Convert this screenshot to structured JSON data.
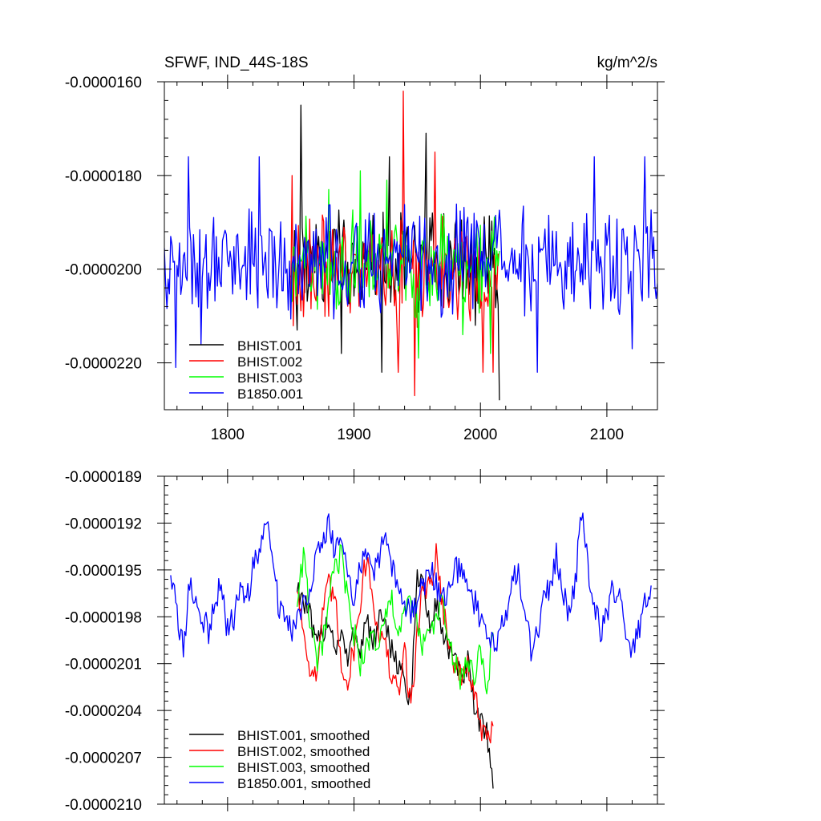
{
  "figure": {
    "title_left": "SFWF, IND_44S-18S",
    "title_right": "kg/m^2/s"
  },
  "chart_data": [
    {
      "type": "line",
      "title": "SFWF, IND_44S-18S",
      "units_label": "kg/m^2/s",
      "xlim": [
        1750,
        2140
      ],
      "ylim": [
        -2.3e-05,
        -1.6e-05
      ],
      "x_ticks": [
        1800,
        1900,
        2000,
        2100
      ],
      "x_tick_labels": [
        "1800",
        "1900",
        "2000",
        "2100"
      ],
      "y_ticks": [
        -2.2e-05,
        -2e-05,
        -1.8e-05,
        -1.6e-05
      ],
      "y_tick_labels": [
        "-0.0000220",
        "-0.0000200",
        "-0.0000180",
        "-0.0000160"
      ],
      "grid": false,
      "legend_placement": "bottom-left",
      "series": [
        {
          "name": "BHIST.001",
          "color": "#000000",
          "x_start": 1850,
          "x_end": 2015,
          "mean": -1.98e-05,
          "amp": 1e-06,
          "spikes": [
            [
              1855,
              -2.13e-05
            ],
            [
              1858,
              -1.65e-05
            ],
            [
              1890,
              -2.18e-05
            ],
            [
              1922,
              -2.22e-05
            ],
            [
              1928,
              -1.76e-05
            ],
            [
              1957,
              -1.71e-05
            ],
            [
              1996,
              -2.12e-05
            ],
            [
              2015,
              -2.28e-05
            ]
          ]
        },
        {
          "name": "BHIST.002",
          "color": "#ff0000",
          "x_start": 1850,
          "x_end": 2015,
          "mean": -2e-05,
          "amp": 1.1e-06,
          "spikes": [
            [
              1851,
              -1.8e-05
            ],
            [
              1939,
              -1.62e-05
            ],
            [
              1935,
              -2.22e-05
            ],
            [
              1948,
              -2.27e-05
            ],
            [
              1964,
              -1.75e-05
            ],
            [
              2002,
              -2.22e-05
            ],
            [
              2010,
              -2.22e-05
            ]
          ]
        },
        {
          "name": "BHIST.003",
          "color": "#00ff00",
          "x_start": 1850,
          "x_end": 2015,
          "mean": -1.99e-05,
          "amp": 1e-06,
          "spikes": [
            [
              1880,
              -1.83e-05
            ],
            [
              1905,
              -1.79e-05
            ],
            [
              1926,
              -1.81e-05
            ],
            [
              1951,
              -2.19e-05
            ],
            [
              1986,
              -2.14e-05
            ],
            [
              2008,
              -2.18e-05
            ]
          ]
        },
        {
          "name": "B1850.001",
          "color": "#0000ff",
          "x_start": 1750,
          "x_end": 2140,
          "mean": -1.98e-05,
          "amp": 1.1e-06,
          "spikes": [
            [
              1759,
              -2.21e-05
            ],
            [
              1769,
              -1.76e-05
            ],
            [
              1779,
              -2.16e-05
            ],
            [
              1825,
              -1.76e-05
            ],
            [
              2045,
              -2.22e-05
            ],
            [
              2090,
              -1.76e-05
            ],
            [
              2120,
              -2.17e-05
            ],
            [
              2130,
              -1.76e-05
            ]
          ]
        }
      ]
    },
    {
      "type": "line",
      "xlim": [
        1750,
        2140
      ],
      "ylim": [
        -2.1e-05,
        -1.89e-05
      ],
      "x_ticks": [
        1800,
        1900,
        2000,
        2100
      ],
      "y_ticks": [
        -2.1e-05,
        -2.07e-05,
        -2.04e-05,
        -2.01e-05,
        -1.98e-05,
        -1.95e-05,
        -1.92e-05,
        -1.89e-05
      ],
      "y_tick_labels": [
        "-0.0000210",
        "-0.0000207",
        "-0.0000204",
        "-0.0000201",
        "-0.0000198",
        "-0.0000195",
        "-0.0000192",
        "-0.0000189"
      ],
      "grid": false,
      "legend_placement": "bottom-left",
      "series": [
        {
          "name": "BHIST.001, smoothed",
          "color": "#000000",
          "x": [
            1855,
            1860,
            1865,
            1870,
            1875,
            1880,
            1885,
            1890,
            1895,
            1900,
            1905,
            1910,
            1915,
            1920,
            1925,
            1930,
            1935,
            1940,
            1945,
            1950,
            1955,
            1960,
            1965,
            1970,
            1975,
            1980,
            1985,
            1990,
            1995,
            2000,
            2005,
            2010
          ],
          "y": [
            -1.96e-05,
            -1.97e-05,
            -1.98e-05,
            -2e-05,
            -1.99e-05,
            -1.98e-05,
            -2e-05,
            -1.99e-05,
            -2.01e-05,
            -1.99e-05,
            -2e-05,
            -1.98e-05,
            -2e-05,
            -1.98e-05,
            -1.99e-05,
            -2e-05,
            -2.01e-05,
            -2.02e-05,
            -2.04e-05,
            -1.95e-05,
            -1.96e-05,
            -1.99e-05,
            -1.97e-05,
            -1.99e-05,
            -2e-05,
            -2.01e-05,
            -2.02e-05,
            -2.01e-05,
            -2.04e-05,
            -2.05e-05,
            -2.05e-05,
            -2.09e-05
          ]
        },
        {
          "name": "BHIST.002, smoothed",
          "color": "#ff0000",
          "x": [
            1855,
            1860,
            1865,
            1870,
            1875,
            1880,
            1885,
            1890,
            1895,
            1900,
            1905,
            1910,
            1915,
            1920,
            1925,
            1930,
            1935,
            1940,
            1945,
            1950,
            1955,
            1960,
            1965,
            1970,
            1975,
            1980,
            1985,
            1990,
            1995,
            2000,
            2005,
            2010
          ],
          "y": [
            -1.96e-05,
            -1.99e-05,
            -2.01e-05,
            -2.02e-05,
            -1.98e-05,
            -1.96e-05,
            -1.97e-05,
            -2.01e-05,
            -2.02e-05,
            -2e-05,
            -1.97e-05,
            -1.94e-05,
            -1.97e-05,
            -1.99e-05,
            -2e-05,
            -2.02e-05,
            -2.03e-05,
            -2e-05,
            -2.04e-05,
            -1.99e-05,
            -1.96e-05,
            -1.96e-05,
            -1.94e-05,
            -1.97e-05,
            -2e-05,
            -2.01e-05,
            -2.02e-05,
            -2.01e-05,
            -2.03e-05,
            -2.05e-05,
            -2.06e-05,
            -2.05e-05
          ]
        },
        {
          "name": "BHIST.003, smoothed",
          "color": "#00ff00",
          "x": [
            1855,
            1860,
            1865,
            1870,
            1875,
            1880,
            1885,
            1890,
            1895,
            1900,
            1905,
            1910,
            1915,
            1920,
            1925,
            1930,
            1935,
            1940,
            1945,
            1950,
            1955,
            1960,
            1965,
            1970,
            1975,
            1980,
            1985,
            1990,
            1995,
            2000,
            2005,
            2010
          ],
          "y": [
            -1.97e-05,
            -1.94e-05,
            -1.98e-05,
            -2.01e-05,
            -2e-05,
            -1.97e-05,
            -1.95e-05,
            -1.94e-05,
            -1.97e-05,
            -1.99e-05,
            -2.01e-05,
            -2e-05,
            -1.99e-05,
            -2e-05,
            -1.98e-05,
            -1.97e-05,
            -1.99e-05,
            -1.98e-05,
            -1.97e-05,
            -1.98e-05,
            -2e-05,
            -1.99e-05,
            -1.98e-05,
            -1.97e-05,
            -2e-05,
            -2.01e-05,
            -2.02e-05,
            -2.01e-05,
            -2.02e-05,
            -2e-05,
            -2.03e-05,
            -1.99e-05
          ]
        },
        {
          "name": "B1850.001, smoothed",
          "color": "#0000ff",
          "x": [
            1755,
            1760,
            1765,
            1770,
            1775,
            1780,
            1785,
            1790,
            1795,
            1800,
            1805,
            1810,
            1815,
            1820,
            1825,
            1830,
            1835,
            1840,
            1845,
            1850,
            1855,
            1860,
            1865,
            1870,
            1875,
            1880,
            1885,
            1890,
            1895,
            1900,
            1905,
            1910,
            1915,
            1920,
            1925,
            1930,
            1935,
            1940,
            1945,
            1950,
            1955,
            1960,
            1965,
            1970,
            1975,
            1980,
            1985,
            1990,
            1995,
            2000,
            2005,
            2010,
            2015,
            2020,
            2025,
            2030,
            2035,
            2040,
            2045,
            2050,
            2055,
            2060,
            2065,
            2070,
            2075,
            2080,
            2085,
            2090,
            2095,
            2100,
            2105,
            2110,
            2115,
            2120,
            2125,
            2130,
            2135
          ],
          "y": [
            -1.95e-05,
            -1.98e-05,
            -2e-05,
            -1.96e-05,
            -1.97e-05,
            -1.98e-05,
            -1.99e-05,
            -1.97e-05,
            -1.96e-05,
            -1.99e-05,
            -1.98e-05,
            -1.96e-05,
            -1.97e-05,
            -1.95e-05,
            -1.94e-05,
            -1.92e-05,
            -1.93e-05,
            -1.97e-05,
            -1.98e-05,
            -1.99e-05,
            -1.98e-05,
            -1.97e-05,
            -1.96e-05,
            -1.94e-05,
            -1.93e-05,
            -1.92e-05,
            -1.94e-05,
            -1.93e-05,
            -1.95e-05,
            -1.97e-05,
            -1.95e-05,
            -1.94e-05,
            -1.95e-05,
            -1.94e-05,
            -1.93e-05,
            -1.95e-05,
            -1.96e-05,
            -1.97e-05,
            -1.98e-05,
            -1.97e-05,
            -1.96e-05,
            -1.95e-05,
            -1.96e-05,
            -1.97e-05,
            -1.96e-05,
            -1.95e-05,
            -1.95e-05,
            -1.96e-05,
            -1.97e-05,
            -1.98e-05,
            -1.99e-05,
            -2e-05,
            -1.99e-05,
            -1.98e-05,
            -1.96e-05,
            -1.95e-05,
            -1.98e-05,
            -2e-05,
            -1.99e-05,
            -1.97e-05,
            -1.96e-05,
            -1.94e-05,
            -1.96e-05,
            -1.98e-05,
            -1.96e-05,
            -1.91e-05,
            -1.95e-05,
            -1.97e-05,
            -1.99e-05,
            -1.98e-05,
            -1.96e-05,
            -1.97e-05,
            -1.99e-05,
            -2e-05,
            -1.99e-05,
            -1.97e-05,
            -1.96e-05
          ]
        }
      ]
    }
  ]
}
